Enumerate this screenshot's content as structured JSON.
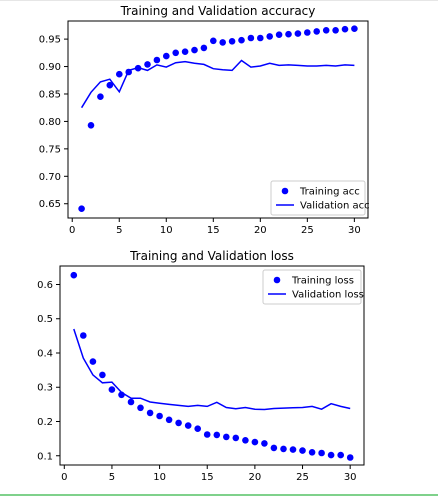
{
  "colors": {
    "series": "#0000ff",
    "frame_bottom": "#7fd18b"
  },
  "chart_data": [
    {
      "type": "line",
      "title": "Training and Validation accuracy",
      "xlabel": "",
      "ylabel": "",
      "xlim": [
        -0.45,
        31.45
      ],
      "ylim": [
        0.624,
        0.983
      ],
      "xticks": [
        0,
        5,
        10,
        15,
        20,
        25,
        30
      ],
      "yticks": [
        0.65,
        0.7,
        0.75,
        0.8,
        0.85,
        0.9,
        0.95
      ],
      "ytick_labels": [
        "0.65",
        "0.70",
        "0.75",
        "0.80",
        "0.85",
        "0.90",
        "0.95"
      ],
      "legend_position": "lower-right",
      "grid": false,
      "series": [
        {
          "name": "Training acc",
          "style": "markers",
          "x": [
            1,
            2,
            3,
            4,
            5,
            6,
            7,
            8,
            9,
            10,
            11,
            12,
            13,
            14,
            15,
            16,
            17,
            18,
            19,
            20,
            21,
            22,
            23,
            24,
            25,
            26,
            27,
            28,
            29,
            30
          ],
          "y": [
            0.641,
            0.793,
            0.845,
            0.866,
            0.886,
            0.89,
            0.897,
            0.904,
            0.912,
            0.919,
            0.925,
            0.927,
            0.93,
            0.934,
            0.947,
            0.944,
            0.946,
            0.948,
            0.952,
            0.952,
            0.955,
            0.958,
            0.959,
            0.96,
            0.962,
            0.964,
            0.966,
            0.966,
            0.968,
            0.969
          ]
        },
        {
          "name": "Validation acc",
          "style": "line",
          "x": [
            1,
            2,
            3,
            4,
            5,
            6,
            7,
            8,
            9,
            10,
            11,
            12,
            13,
            14,
            15,
            16,
            17,
            18,
            19,
            20,
            21,
            22,
            23,
            24,
            25,
            26,
            27,
            28,
            29,
            30
          ],
          "y": [
            0.825,
            0.853,
            0.872,
            0.877,
            0.854,
            0.893,
            0.898,
            0.893,
            0.903,
            0.899,
            0.907,
            0.909,
            0.906,
            0.904,
            0.896,
            0.894,
            0.893,
            0.911,
            0.899,
            0.901,
            0.906,
            0.902,
            0.903,
            0.902,
            0.901,
            0.901,
            0.902,
            0.901,
            0.903,
            0.902
          ]
        }
      ]
    },
    {
      "type": "line",
      "title": "Training and Validation loss",
      "xlabel": "",
      "ylabel": "",
      "xlim": [
        -0.45,
        31.45
      ],
      "ylim": [
        0.073,
        0.654
      ],
      "xticks": [
        0,
        5,
        10,
        15,
        20,
        25,
        30
      ],
      "yticks": [
        0.1,
        0.2,
        0.3,
        0.4,
        0.5,
        0.6
      ],
      "ytick_labels": [
        "0.1",
        "0.2",
        "0.3",
        "0.4",
        "0.5",
        "0.6"
      ],
      "legend_position": "upper-right",
      "grid": false,
      "series": [
        {
          "name": "Training loss",
          "style": "markers",
          "x": [
            1,
            2,
            3,
            4,
            5,
            6,
            7,
            8,
            9,
            10,
            11,
            12,
            13,
            14,
            15,
            16,
            17,
            18,
            19,
            20,
            21,
            22,
            23,
            24,
            25,
            26,
            27,
            28,
            29,
            30
          ],
          "y": [
            0.627,
            0.451,
            0.375,
            0.336,
            0.293,
            0.278,
            0.257,
            0.24,
            0.225,
            0.216,
            0.205,
            0.196,
            0.188,
            0.179,
            0.162,
            0.161,
            0.155,
            0.152,
            0.145,
            0.14,
            0.136,
            0.123,
            0.12,
            0.118,
            0.115,
            0.11,
            0.108,
            0.102,
            0.102,
            0.095
          ]
        },
        {
          "name": "Validation loss",
          "style": "line",
          "x": [
            1,
            2,
            3,
            4,
            5,
            6,
            7,
            8,
            9,
            10,
            11,
            12,
            13,
            14,
            15,
            16,
            17,
            18,
            19,
            20,
            21,
            22,
            23,
            24,
            25,
            26,
            27,
            28,
            29,
            30
          ],
          "y": [
            0.47,
            0.385,
            0.336,
            0.313,
            0.315,
            0.285,
            0.268,
            0.268,
            0.257,
            0.253,
            0.25,
            0.247,
            0.244,
            0.247,
            0.244,
            0.256,
            0.241,
            0.237,
            0.241,
            0.236,
            0.235,
            0.238,
            0.239,
            0.24,
            0.241,
            0.244,
            0.236,
            0.252,
            0.244,
            0.238
          ]
        }
      ]
    }
  ]
}
